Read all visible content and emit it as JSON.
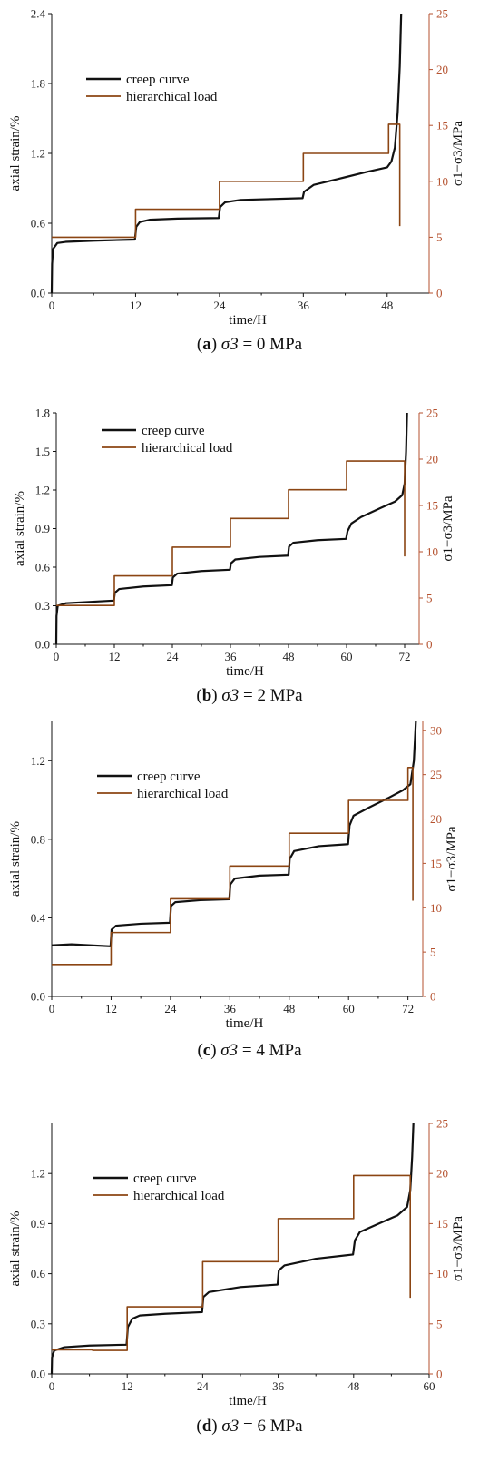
{
  "colors": {
    "creep": "#111111",
    "load": "#8b4513",
    "right_axis": "#b5522f",
    "left_axis": "#111111"
  },
  "chart_data": [
    {
      "type": "line",
      "caption": {
        "letter": "a",
        "sigma": "σ3",
        "rest": " = 0 MPa"
      },
      "xlabel": "time/H",
      "ylabel": "axial strain/%",
      "y2label": "σ1−σ3/MPa",
      "xlim": [
        0,
        54
      ],
      "ylim": [
        0,
        2.4
      ],
      "y2lim": [
        0,
        25
      ],
      "xticks": [
        "0",
        "12",
        "24",
        "36",
        "48"
      ],
      "yticks": [
        "0.0",
        "0.6",
        "1.2",
        "1.8",
        "2.4"
      ],
      "y2ticks": [
        "0",
        "5",
        "10",
        "15",
        "20",
        "25"
      ],
      "legend": [
        "creep curve",
        "hierarchical load"
      ],
      "grid": false,
      "series": [
        {
          "name": "creep curve",
          "axis": "left",
          "points": [
            [
              0,
              0
            ],
            [
              0.05,
              0.25
            ],
            [
              0.2,
              0.38
            ],
            [
              0.8,
              0.43
            ],
            [
              2,
              0.44
            ],
            [
              6,
              0.45
            ],
            [
              11.9,
              0.46
            ],
            [
              12.1,
              0.57
            ],
            [
              12.6,
              0.61
            ],
            [
              14,
              0.63
            ],
            [
              18,
              0.64
            ],
            [
              23.9,
              0.645
            ],
            [
              24.1,
              0.74
            ],
            [
              24.8,
              0.78
            ],
            [
              27,
              0.8
            ],
            [
              35.9,
              0.815
            ],
            [
              36.1,
              0.87
            ],
            [
              37.5,
              0.93
            ],
            [
              41,
              0.98
            ],
            [
              45,
              1.04
            ],
            [
              48,
              1.08
            ],
            [
              48.6,
              1.13
            ],
            [
              49.1,
              1.25
            ],
            [
              49.5,
              1.55
            ],
            [
              49.8,
              1.95
            ],
            [
              50.0,
              2.4
            ]
          ]
        },
        {
          "name": "hierarchical load",
          "axis": "right",
          "points": [
            [
              0,
              5.0
            ],
            [
              12,
              5.0
            ],
            [
              12,
              7.5
            ],
            [
              24,
              7.5
            ],
            [
              24,
              10.0
            ],
            [
              36,
              10.0
            ],
            [
              36,
              12.5
            ],
            [
              48.2,
              12.5
            ],
            [
              48.2,
              15.1
            ],
            [
              49.8,
              15.1
            ],
            [
              49.8,
              6.0
            ]
          ]
        }
      ]
    },
    {
      "type": "line",
      "caption": {
        "letter": "b",
        "sigma": "σ3",
        "rest": " = 2 MPa"
      },
      "xlabel": "time/H",
      "ylabel": "axial strain/%",
      "y2label": "σ1−σ3/MPa",
      "xlim": [
        0,
        75
      ],
      "ylim": [
        0,
        1.8
      ],
      "y2lim": [
        0,
        25
      ],
      "xticks": [
        "0",
        "12",
        "24",
        "36",
        "48",
        "60",
        "72"
      ],
      "yticks": [
        "0.0",
        "0.3",
        "0.6",
        "0.9",
        "1.2",
        "1.5",
        "1.8"
      ],
      "y2ticks": [
        "0",
        "5",
        "10",
        "15",
        "20",
        "25"
      ],
      "legend": [
        "creep curve",
        "hierarchical load"
      ],
      "grid": false,
      "series": [
        {
          "name": "creep curve",
          "axis": "left",
          "points": [
            [
              0,
              0
            ],
            [
              0.05,
              0.22
            ],
            [
              0.3,
              0.3
            ],
            [
              2,
              0.32
            ],
            [
              11.9,
              0.34
            ],
            [
              12.1,
              0.4
            ],
            [
              13,
              0.43
            ],
            [
              18,
              0.45
            ],
            [
              23.9,
              0.46
            ],
            [
              24.1,
              0.52
            ],
            [
              25,
              0.55
            ],
            [
              30,
              0.57
            ],
            [
              35.9,
              0.58
            ],
            [
              36.1,
              0.63
            ],
            [
              37,
              0.66
            ],
            [
              42,
              0.68
            ],
            [
              47.9,
              0.69
            ],
            [
              48.1,
              0.76
            ],
            [
              49,
              0.79
            ],
            [
              54,
              0.81
            ],
            [
              59.9,
              0.82
            ],
            [
              60.2,
              0.88
            ],
            [
              61,
              0.94
            ],
            [
              63,
              0.99
            ],
            [
              67,
              1.06
            ],
            [
              70,
              1.11
            ],
            [
              71.5,
              1.16
            ],
            [
              72.0,
              1.25
            ],
            [
              72.3,
              1.5
            ],
            [
              72.5,
              1.8
            ]
          ]
        },
        {
          "name": "hierarchical load",
          "axis": "right",
          "points": [
            [
              0,
              4.2
            ],
            [
              12,
              4.2
            ],
            [
              12,
              7.4
            ],
            [
              24,
              7.4
            ],
            [
              24,
              10.5
            ],
            [
              36,
              10.5
            ],
            [
              36,
              13.6
            ],
            [
              48,
              13.6
            ],
            [
              48,
              16.7
            ],
            [
              60,
              16.7
            ],
            [
              60,
              19.8
            ],
            [
              72,
              19.8
            ],
            [
              72,
              9.5
            ]
          ]
        }
      ]
    },
    {
      "type": "line",
      "caption": {
        "letter": "c",
        "sigma": "σ3",
        "rest": " = 4 MPa"
      },
      "xlabel": "time/H",
      "ylabel": "axial strain/%",
      "y2label": "σ1−σ3/MPa",
      "xlim": [
        0,
        75
      ],
      "ylim": [
        0,
        1.4
      ],
      "y2lim": [
        0,
        31
      ],
      "xticks": [
        "0",
        "12",
        "24",
        "36",
        "48",
        "60",
        "72"
      ],
      "yticks": [
        "0.0",
        "0.4",
        "0.8",
        "1.2"
      ],
      "y2ticks": [
        "0",
        "5",
        "10",
        "15",
        "20",
        "25",
        "30"
      ],
      "legend": [
        "creep curve",
        "hierarchical load"
      ],
      "grid": false,
      "series": [
        {
          "name": "creep curve",
          "axis": "left",
          "points": [
            [
              0,
              0.26
            ],
            [
              4,
              0.265
            ],
            [
              11.9,
              0.255
            ],
            [
              12.1,
              0.34
            ],
            [
              13,
              0.36
            ],
            [
              18,
              0.37
            ],
            [
              23.9,
              0.375
            ],
            [
              24.1,
              0.46
            ],
            [
              25,
              0.48
            ],
            [
              30,
              0.49
            ],
            [
              35.9,
              0.495
            ],
            [
              36.1,
              0.57
            ],
            [
              37,
              0.6
            ],
            [
              42,
              0.615
            ],
            [
              47.9,
              0.62
            ],
            [
              48.1,
              0.7
            ],
            [
              49,
              0.74
            ],
            [
              54,
              0.765
            ],
            [
              59.9,
              0.775
            ],
            [
              60.2,
              0.87
            ],
            [
              61,
              0.92
            ],
            [
              64,
              0.96
            ],
            [
              68,
              1.01
            ],
            [
              71,
              1.05
            ],
            [
              72.5,
              1.08
            ],
            [
              73.2,
              1.2
            ],
            [
              73.6,
              1.4
            ]
          ]
        },
        {
          "name": "hierarchical load",
          "axis": "right",
          "points": [
            [
              0,
              3.6
            ],
            [
              12,
              3.6
            ],
            [
              12,
              7.2
            ],
            [
              24,
              7.2
            ],
            [
              24,
              11.0
            ],
            [
              36,
              11.0
            ],
            [
              36,
              14.7
            ],
            [
              48,
              14.7
            ],
            [
              48,
              18.4
            ],
            [
              60,
              18.4
            ],
            [
              60,
              22.1
            ],
            [
              72,
              22.1
            ],
            [
              72,
              25.8
            ],
            [
              73,
              25.8
            ],
            [
              73,
              10.8
            ]
          ]
        }
      ]
    },
    {
      "type": "line",
      "caption": {
        "letter": "d",
        "sigma": "σ3",
        "rest": " = 6 MPa"
      },
      "xlabel": "time/H",
      "ylabel": "axial strain/%",
      "y2label": "σ1−σ3/MPa",
      "xlim": [
        0,
        60
      ],
      "ylim": [
        0,
        1.5
      ],
      "y2lim": [
        0,
        25
      ],
      "xticks": [
        "0",
        "12",
        "24",
        "36",
        "48",
        "60"
      ],
      "yticks": [
        "0.0",
        "0.3",
        "0.6",
        "0.9",
        "1.2"
      ],
      "y2ticks": [
        "0",
        "5",
        "10",
        "15",
        "20",
        "25"
      ],
      "legend": [
        "creep curve",
        "hierarchical load"
      ],
      "grid": false,
      "series": [
        {
          "name": "creep curve",
          "axis": "left",
          "points": [
            [
              0,
              0
            ],
            [
              0.05,
              0.1
            ],
            [
              0.4,
              0.14
            ],
            [
              2,
              0.16
            ],
            [
              6,
              0.17
            ],
            [
              11.9,
              0.175
            ],
            [
              12.1,
              0.28
            ],
            [
              12.8,
              0.33
            ],
            [
              14,
              0.35
            ],
            [
              18,
              0.36
            ],
            [
              23.9,
              0.37
            ],
            [
              24.1,
              0.46
            ],
            [
              25,
              0.49
            ],
            [
              30,
              0.52
            ],
            [
              35.9,
              0.535
            ],
            [
              36.1,
              0.62
            ],
            [
              37,
              0.65
            ],
            [
              42,
              0.69
            ],
            [
              47.9,
              0.715
            ],
            [
              48.2,
              0.8
            ],
            [
              49,
              0.85
            ],
            [
              52,
              0.9
            ],
            [
              55,
              0.95
            ],
            [
              56.5,
              1.0
            ],
            [
              57.0,
              1.1
            ],
            [
              57.3,
              1.3
            ],
            [
              57.5,
              1.5
            ]
          ]
        },
        {
          "name": "hierarchical load",
          "axis": "right",
          "points": [
            [
              0,
              2.4
            ],
            [
              6.5,
              2.4
            ],
            [
              6.5,
              2.35
            ],
            [
              12,
              2.35
            ],
            [
              12,
              6.7
            ],
            [
              24,
              6.7
            ],
            [
              24,
              11.2
            ],
            [
              36,
              11.2
            ],
            [
              36,
              15.5
            ],
            [
              48,
              15.5
            ],
            [
              48,
              19.8
            ],
            [
              57,
              19.8
            ],
            [
              57,
              7.6
            ]
          ]
        }
      ]
    }
  ]
}
